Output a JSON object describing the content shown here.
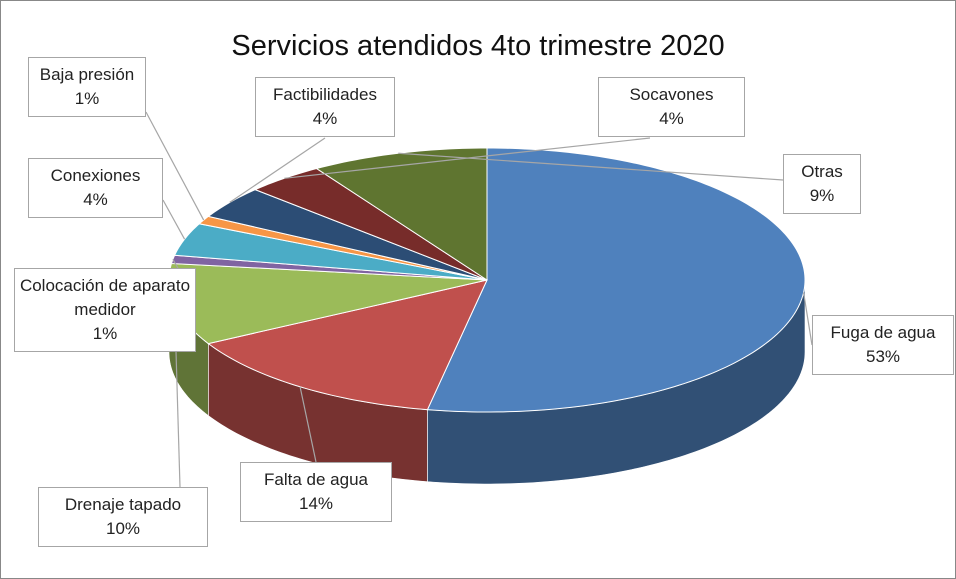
{
  "chart_data": {
    "type": "pie3d",
    "title": "Servicios atendidos 4to trimestre 2020",
    "categories": [
      "Fuga de agua",
      "Falta de agua",
      "Drenaje tapado",
      "Colocación de aparato medidor",
      "Conexiones",
      "Baja presión",
      "Factibilidades",
      "Socavones",
      "Otras"
    ],
    "values": [
      53,
      14,
      10,
      1,
      4,
      1,
      4,
      4,
      9
    ],
    "value_labels": [
      "53%",
      "14%",
      "10%",
      "1%",
      "4%",
      "1%",
      "4%",
      "4%",
      "9%"
    ],
    "colors": [
      "#4f81bd",
      "#c0504d",
      "#9bbb59",
      "#8064a2",
      "#4bacc6",
      "#f79646",
      "#2c4d75",
      "#772c2a",
      "#5f7530"
    ]
  }
}
